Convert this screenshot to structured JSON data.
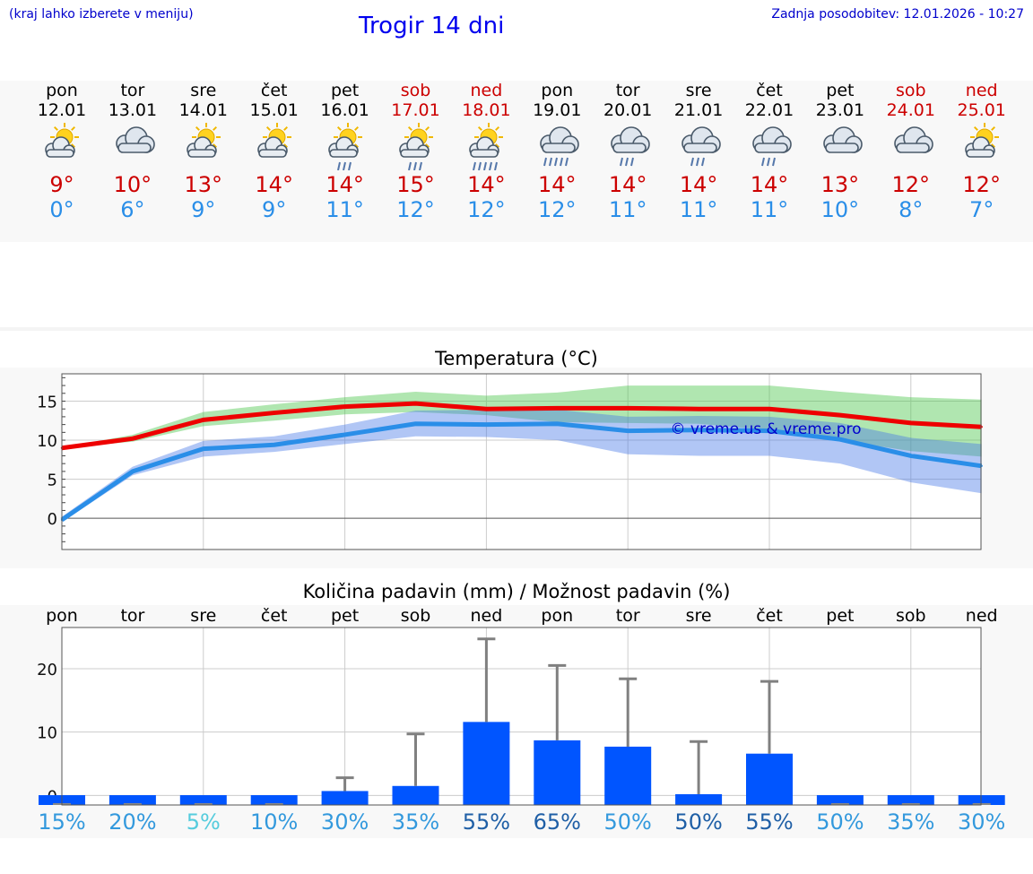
{
  "header": {
    "hint": "(kraj lahko izberete v meniju)",
    "title": "Trogir 14 dni",
    "updated": "Zadnja posodobitev: 12.01.2026 - 10:27"
  },
  "colors": {
    "max": "#cc0000",
    "min": "#2a8ee8",
    "weekend": "#cc0000",
    "bar": "#0055ff"
  },
  "days": [
    {
      "name": "pon",
      "date": "12.01",
      "icon": "sun-cloud-icon",
      "max": "9°",
      "min": "0°",
      "weekend": false
    },
    {
      "name": "tor",
      "date": "13.01",
      "icon": "cloudy-icon",
      "max": "10°",
      "min": "6°",
      "weekend": false
    },
    {
      "name": "sre",
      "date": "14.01",
      "icon": "sun-cloud-icon",
      "max": "13°",
      "min": "9°",
      "weekend": false
    },
    {
      "name": "čet",
      "date": "15.01",
      "icon": "sun-cloud-icon",
      "max": "14°",
      "min": "9°",
      "weekend": false
    },
    {
      "name": "pet",
      "date": "16.01",
      "icon": "sun-cloud-rain-icon",
      "max": "14°",
      "min": "11°",
      "weekend": false
    },
    {
      "name": "sob",
      "date": "17.01",
      "icon": "sun-cloud-rain-icon",
      "max": "15°",
      "min": "12°",
      "weekend": true
    },
    {
      "name": "ned",
      "date": "18.01",
      "icon": "sun-cloud-heavy-rain-icon",
      "max": "14°",
      "min": "12°",
      "weekend": true
    },
    {
      "name": "pon",
      "date": "19.01",
      "icon": "cloud-heavy-rain-icon",
      "max": "14°",
      "min": "12°",
      "weekend": false
    },
    {
      "name": "tor",
      "date": "20.01",
      "icon": "cloud-rain-icon",
      "max": "14°",
      "min": "11°",
      "weekend": false
    },
    {
      "name": "sre",
      "date": "21.01",
      "icon": "cloud-rain-icon",
      "max": "14°",
      "min": "11°",
      "weekend": false
    },
    {
      "name": "čet",
      "date": "22.01",
      "icon": "cloud-rain-icon",
      "max": "14°",
      "min": "11°",
      "weekend": false
    },
    {
      "name": "pet",
      "date": "23.01",
      "icon": "cloudy-icon",
      "max": "13°",
      "min": "10°",
      "weekend": false
    },
    {
      "name": "sob",
      "date": "24.01",
      "icon": "cloudy-icon",
      "max": "12°",
      "min": "8°",
      "weekend": true
    },
    {
      "name": "ned",
      "date": "25.01",
      "icon": "sun-cloud-icon",
      "max": "12°",
      "min": "7°",
      "weekend": true
    }
  ],
  "chart_data": [
    {
      "type": "line",
      "title": "Temperatura (°C)",
      "watermark": "© vreme.us & vreme.pro",
      "ylim": [
        -4,
        18.5
      ],
      "yticks": [
        "0",
        "5",
        "10",
        "15"
      ],
      "series": [
        {
          "name": "max",
          "values": [
            9,
            10.2,
            12.6,
            13.5,
            14.3,
            14.7,
            14,
            14.1,
            14.1,
            14,
            14,
            13.2,
            12.2,
            11.7
          ],
          "upper": [
            9,
            10.7,
            13.6,
            14.6,
            15.5,
            16.2,
            15.7,
            16.1,
            17,
            17,
            17,
            16.2,
            15.5,
            15.2
          ],
          "lower": [
            9,
            9.8,
            11.8,
            12.5,
            13.3,
            13.6,
            13.2,
            12.3,
            12.2,
            12.1,
            11.3,
            10,
            8.6,
            7.9
          ]
        },
        {
          "name": "min",
          "values": [
            -0.2,
            6,
            8.9,
            9.4,
            10.7,
            12.1,
            12,
            12.1,
            11.2,
            11.3,
            11.2,
            10.1,
            8,
            6.7
          ],
          "upper": [
            0.2,
            6.6,
            9.9,
            10.5,
            12,
            13.8,
            13.9,
            13.9,
            13,
            13.1,
            13,
            12.2,
            10.3,
            9.5
          ],
          "lower": [
            -0.5,
            5.5,
            7.9,
            8.5,
            9.5,
            10.5,
            10.4,
            10,
            8.2,
            8,
            8,
            7,
            4.6,
            3.2
          ]
        }
      ]
    },
    {
      "type": "bar",
      "title": "Količina padavin (mm) / Možnost padavin (%)",
      "categories": [
        "pon",
        "tor",
        "sre",
        "čet",
        "pet",
        "sob",
        "ned",
        "pon",
        "tor",
        "sre",
        "čet",
        "pet",
        "sob",
        "ned"
      ],
      "values": [
        0,
        0,
        0,
        0,
        0.7,
        1.5,
        11.6,
        8.7,
        7.7,
        0.2,
        6.6,
        0,
        0,
        0
      ],
      "error_high": [
        0,
        0,
        0,
        0,
        2.8,
        9.7,
        24.7,
        20.5,
        18.4,
        8.5,
        18,
        0,
        0,
        0
      ],
      "ylim": [
        -1.5,
        26.5
      ],
      "yticks": [
        "0",
        "10",
        "20"
      ],
      "chance": [
        {
          "label": "15%",
          "color": "#3399dd"
        },
        {
          "label": "20%",
          "color": "#3399dd"
        },
        {
          "label": "5%",
          "color": "#55ccdd"
        },
        {
          "label": "10%",
          "color": "#3399dd"
        },
        {
          "label": "30%",
          "color": "#3399dd"
        },
        {
          "label": "35%",
          "color": "#3399dd"
        },
        {
          "label": "55%",
          "color": "#1f5fa6"
        },
        {
          "label": "65%",
          "color": "#1f5fa6"
        },
        {
          "label": "50%",
          "color": "#3399dd"
        },
        {
          "label": "50%",
          "color": "#1f5fa6"
        },
        {
          "label": "55%",
          "color": "#1f5fa6"
        },
        {
          "label": "50%",
          "color": "#3399dd"
        },
        {
          "label": "35%",
          "color": "#3399dd"
        },
        {
          "label": "30%",
          "color": "#3399dd"
        }
      ]
    }
  ]
}
